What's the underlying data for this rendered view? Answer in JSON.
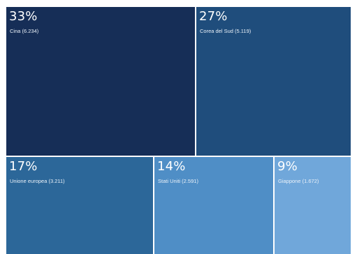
{
  "chart_data": {
    "type": "treemap",
    "title": "",
    "items": [
      {
        "name": "Cina",
        "value": 6234,
        "percent": "33%",
        "label": "Cina (6.234)",
        "color": "#162e57"
      },
      {
        "name": "Corea del Sud",
        "value": 5119,
        "percent": "27%",
        "label": "Corea del Sud (5.119)",
        "color": "#1f4d7c"
      },
      {
        "name": "Unione europea",
        "value": 3211,
        "percent": "17%",
        "label": "Unione europea (3.211)",
        "color": "#2c6799"
      },
      {
        "name": "Stati Uniti",
        "value": 2591,
        "percent": "14%",
        "label": "Stati Uniti (2.591)",
        "color": "#4f8ec6"
      },
      {
        "name": "Giappone",
        "value": 1672,
        "percent": "9%",
        "label": "Giappone (1.672)",
        "color": "#70a7da"
      }
    ]
  }
}
